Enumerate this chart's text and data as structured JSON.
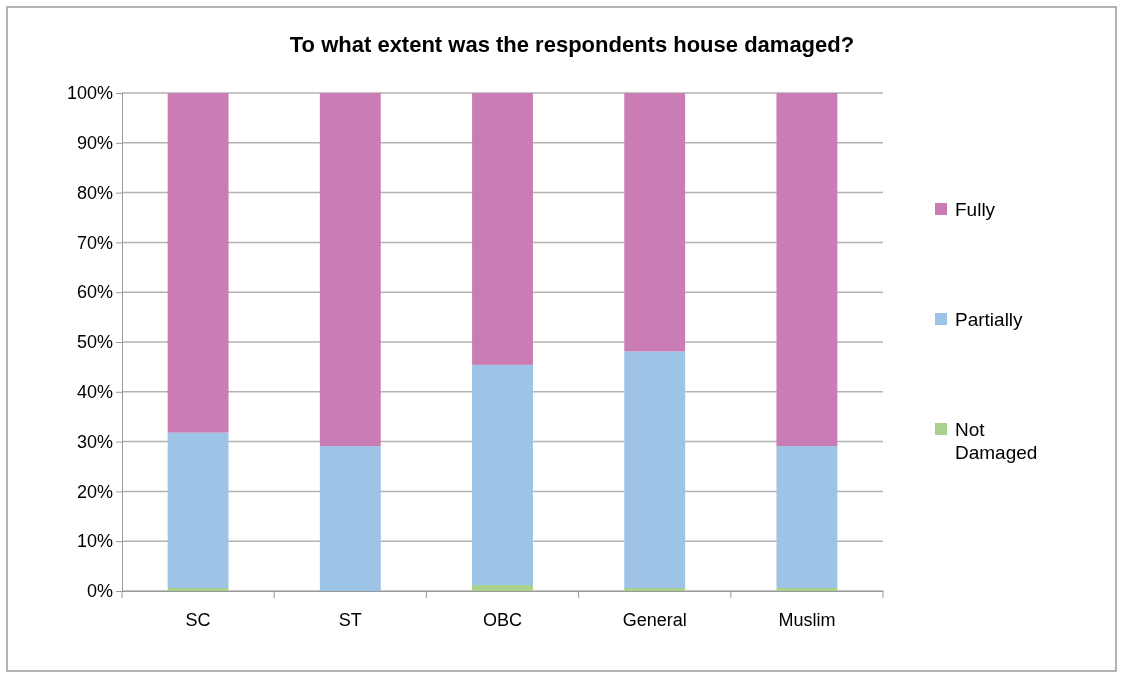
{
  "chart_data": {
    "type": "bar",
    "title": "To what extent was the respondents house damaged?",
    "stacked": true,
    "categories": [
      "SC",
      "ST",
      "OBC",
      "General",
      "Muslim"
    ],
    "series": [
      {
        "name": "Not Damaged",
        "color": "#a9d18e",
        "values": [
          0.6,
          0,
          1.2,
          0.6,
          0.6
        ]
      },
      {
        "name": "Partially",
        "color": "#9dc3e6",
        "values": [
          31.2,
          29.1,
          44.2,
          47.5,
          28.5
        ]
      },
      {
        "name": "Fully",
        "color": "#c97db4",
        "values": [
          68.2,
          70.9,
          54.6,
          51.9,
          70.9
        ]
      }
    ],
    "ylim": [
      0,
      100
    ],
    "yticks": [
      {
        "value": 0,
        "label": "0%"
      },
      {
        "value": 10,
        "label": "10%"
      },
      {
        "value": 20,
        "label": "20%"
      },
      {
        "value": 30,
        "label": "30%"
      },
      {
        "value": 40,
        "label": "40%"
      },
      {
        "value": 50,
        "label": "50%"
      },
      {
        "value": 60,
        "label": "60%"
      },
      {
        "value": 70,
        "label": "70%"
      },
      {
        "value": 80,
        "label": "80%"
      },
      {
        "value": 90,
        "label": "90%"
      },
      {
        "value": 100,
        "label": "100%"
      }
    ],
    "grid": "y",
    "legend": "right"
  }
}
